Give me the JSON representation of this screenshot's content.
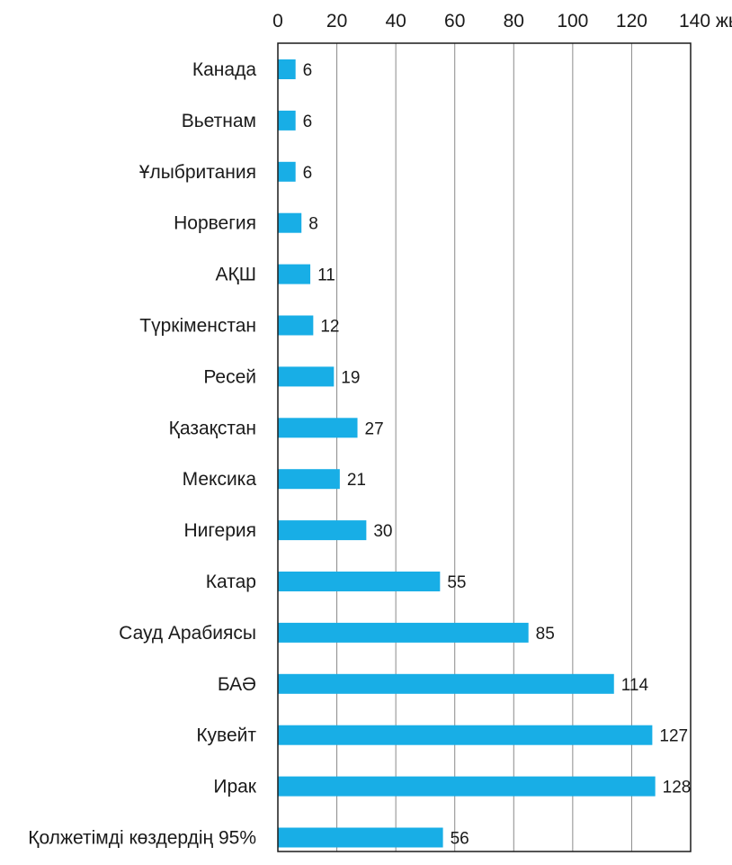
{
  "chart_data": {
    "type": "bar",
    "orientation": "horizontal",
    "title": "",
    "xlabel": "",
    "ylabel": "",
    "x_unit": "жыл",
    "xlim": [
      0,
      140
    ],
    "x_ticks": [
      0,
      20,
      40,
      60,
      80,
      100,
      120,
      140
    ],
    "grid": true,
    "bar_color": "#18aee6",
    "categories": [
      "Канада",
      "Вьетнам",
      "Ұлыбритания",
      "Норвегия",
      "АҚШ",
      "Түркіменстан",
      "Ресей",
      "Қазақстан",
      "Мексика",
      "Нигерия",
      "Катар",
      "Сауд Арабиясы",
      "БАӘ",
      "Кувейт",
      "Ирак",
      "Қолжетімді көздердің 95%"
    ],
    "values": [
      6,
      6,
      6,
      8,
      11,
      12,
      19,
      27,
      21,
      30,
      55,
      85,
      114,
      127,
      128,
      56
    ]
  }
}
